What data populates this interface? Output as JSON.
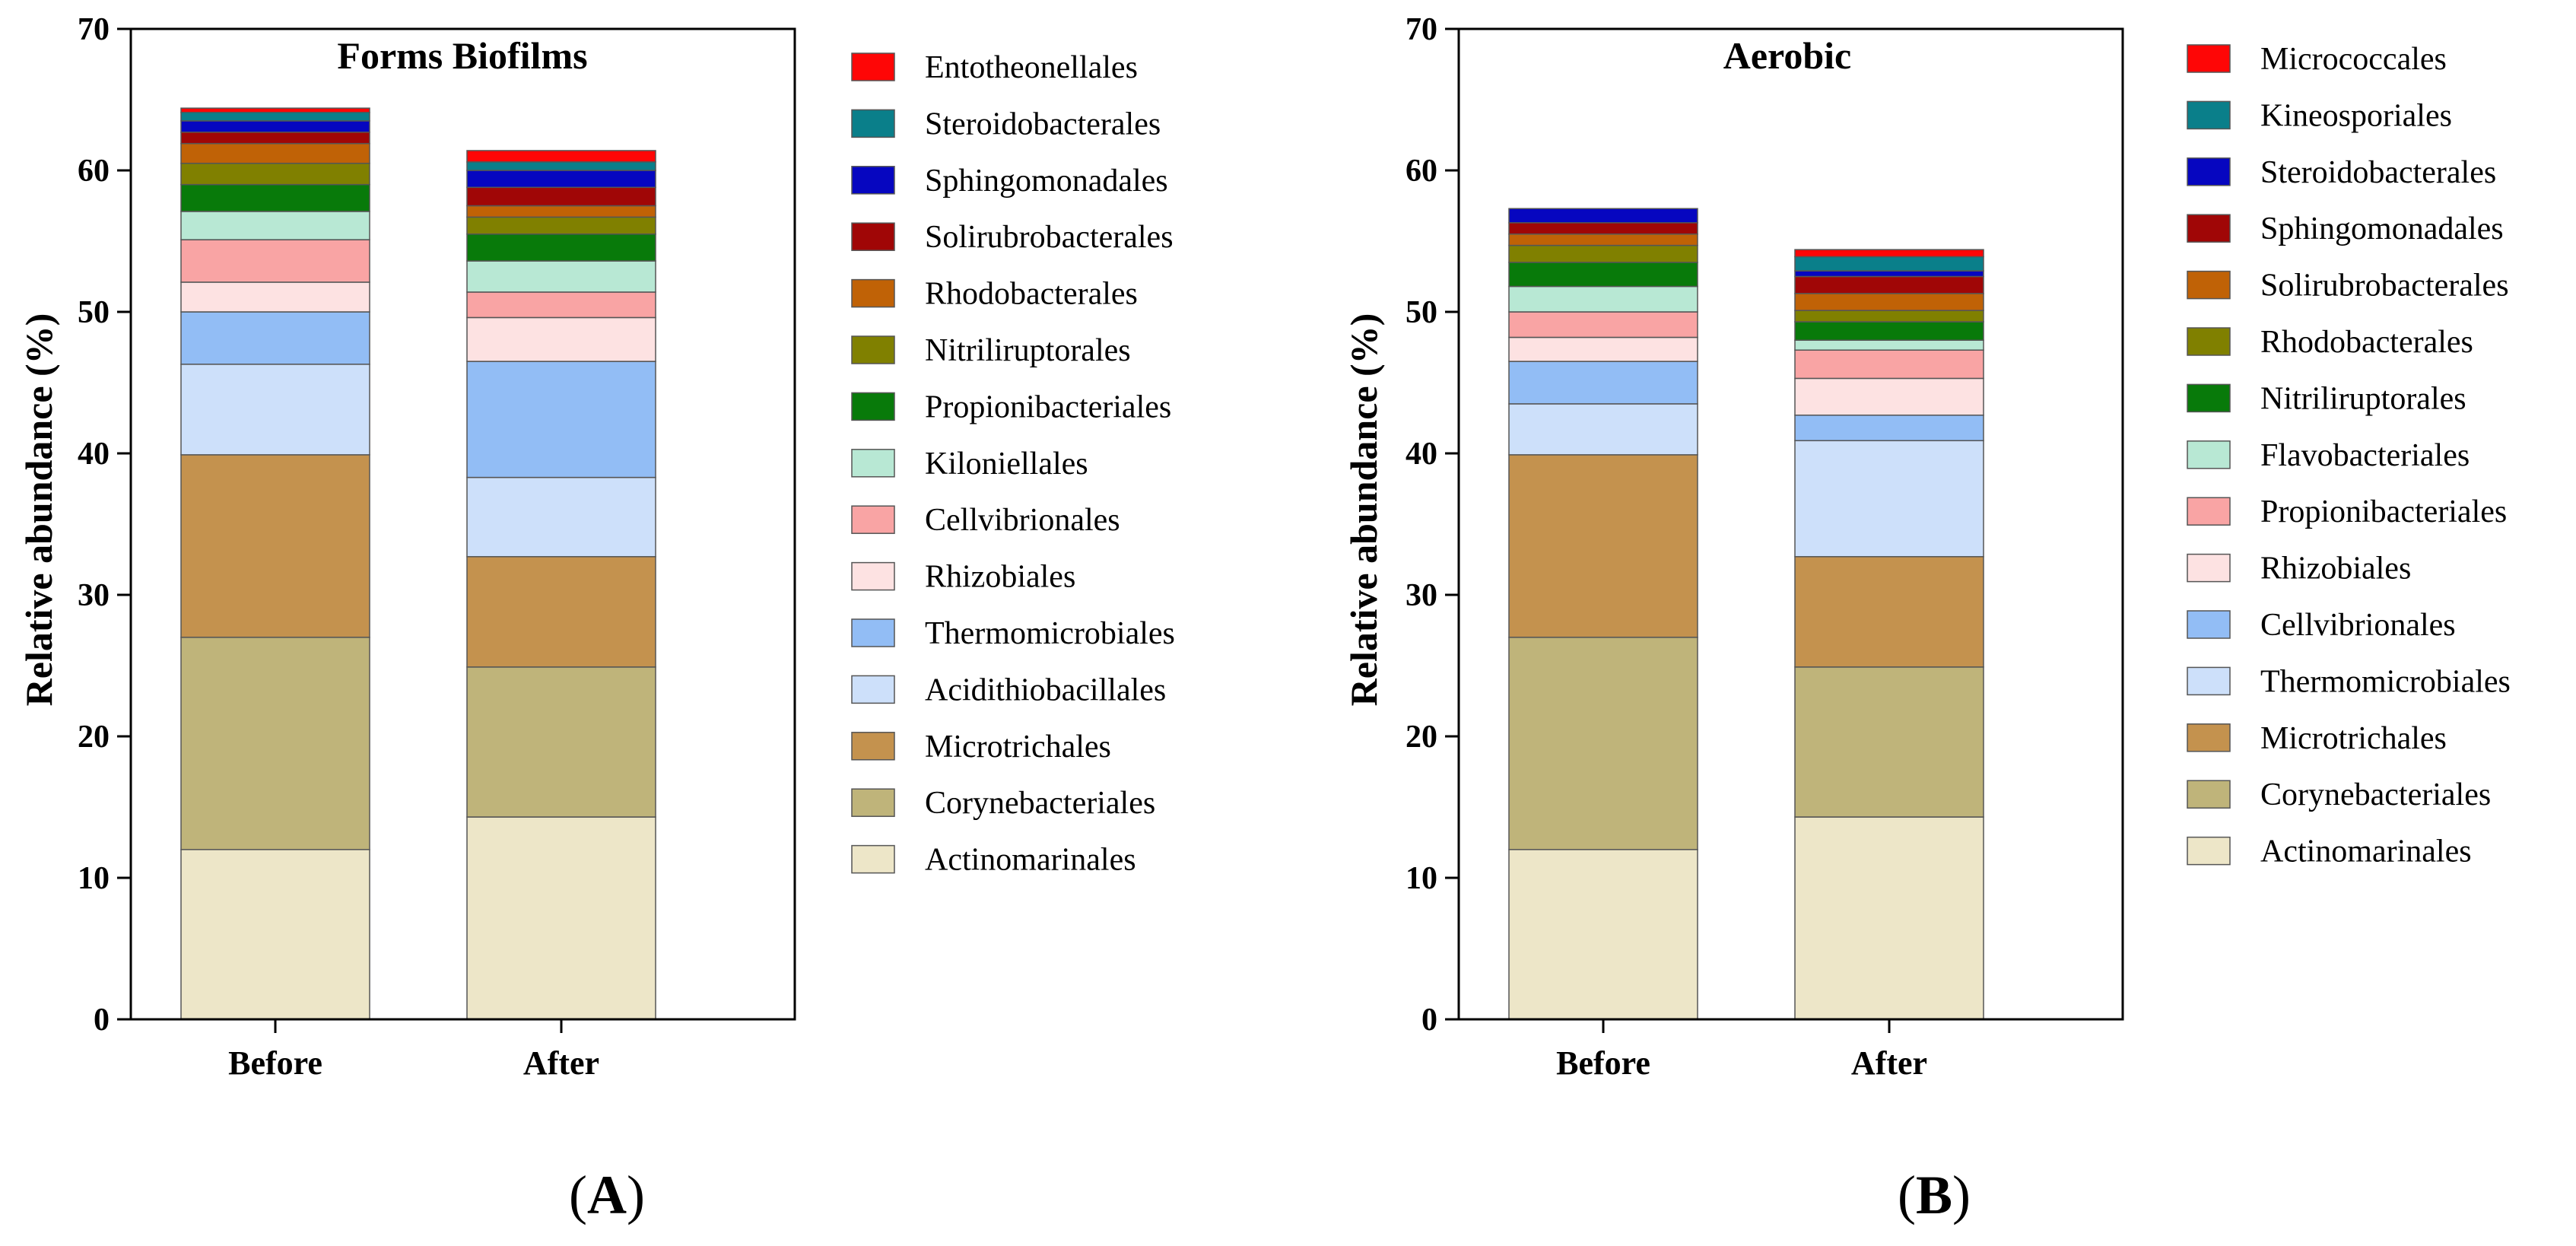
{
  "chart_data": [
    {
      "panel": "A",
      "panel_label": {
        "open": "(",
        "letter": "A",
        "close": ")"
      },
      "type": "bar",
      "stacked": true,
      "title": "Forms Biofilms",
      "xlabel": "",
      "ylabel": "Relative abundance (%)",
      "ylim": [
        0,
        70
      ],
      "yticks": [
        0,
        10,
        20,
        30,
        40,
        50,
        60,
        70
      ],
      "categories": [
        "Before",
        "After"
      ],
      "legend_position": "right",
      "series": [
        {
          "name": "Actinomarinales",
          "color": "#ede6c8",
          "values": [
            12.0,
            14.3
          ]
        },
        {
          "name": "Corynebacteriales",
          "color": "#bfb47a",
          "values": [
            15.0,
            10.6
          ]
        },
        {
          "name": "Microtrichales",
          "color": "#c4924e",
          "values": [
            12.9,
            7.8
          ]
        },
        {
          "name": "Acidithiobacillales",
          "color": "#cde0fa",
          "values": [
            6.4,
            5.6
          ]
        },
        {
          "name": "Thermomicrobiales",
          "color": "#92bdf5",
          "values": [
            3.7,
            8.2
          ]
        },
        {
          "name": "Rhizobiales",
          "color": "#fde2e2",
          "values": [
            2.1,
            3.1
          ]
        },
        {
          "name": "Cellvibrionales",
          "color": "#f9a4a4",
          "values": [
            3.0,
            1.8
          ]
        },
        {
          "name": "Kiloniellales",
          "color": "#b8e8d4",
          "values": [
            2.0,
            2.2
          ]
        },
        {
          "name": "Propionibacteriales",
          "color": "#087a0a",
          "values": [
            1.9,
            1.9
          ]
        },
        {
          "name": "Nitriliruptorales",
          "color": "#808000",
          "values": [
            1.5,
            1.2
          ]
        },
        {
          "name": "Rhodobacterales",
          "color": "#c06206",
          "values": [
            1.4,
            0.8
          ]
        },
        {
          "name": "Solirubrobacterales",
          "color": "#a00606",
          "values": [
            0.8,
            1.3
          ]
        },
        {
          "name": "Sphingomonadales",
          "color": "#0606c0",
          "values": [
            0.8,
            1.2
          ]
        },
        {
          "name": "Steroidobacterales",
          "color": "#0a7f8a",
          "values": [
            0.6,
            0.6
          ]
        },
        {
          "name": "Entotheonellales",
          "color": "#fe0606",
          "values": [
            0.3,
            0.8
          ]
        }
      ]
    },
    {
      "panel": "B",
      "panel_label": {
        "open": "(",
        "letter": "B",
        "close": ")"
      },
      "type": "bar",
      "stacked": true,
      "title": "Aerobic",
      "xlabel": "",
      "ylabel": "Relative abundance (%)",
      "ylim": [
        0,
        70
      ],
      "yticks": [
        0,
        10,
        20,
        30,
        40,
        50,
        60,
        70
      ],
      "categories": [
        "Before",
        "After"
      ],
      "legend_position": "right",
      "series": [
        {
          "name": "Actinomarinales",
          "color": "#ede6c8",
          "values": [
            12.0,
            14.3
          ]
        },
        {
          "name": "Corynebacteriales",
          "color": "#bfb47a",
          "values": [
            15.0,
            10.6
          ]
        },
        {
          "name": "Microtrichales",
          "color": "#c4924e",
          "values": [
            12.9,
            7.8
          ]
        },
        {
          "name": "Thermomicrobiales",
          "color": "#cde0fa",
          "values": [
            3.6,
            8.2
          ]
        },
        {
          "name": "Cellvibrionales",
          "color": "#92bdf5",
          "values": [
            3.0,
            1.8
          ]
        },
        {
          "name": "Rhizobiales",
          "color": "#fde2e2",
          "values": [
            1.7,
            2.6
          ]
        },
        {
          "name": "Propionibacteriales",
          "color": "#f9a4a4",
          "values": [
            1.8,
            2.0
          ]
        },
        {
          "name": "Flavobacteriales",
          "color": "#b8e8d4",
          "values": [
            1.8,
            0.7
          ]
        },
        {
          "name": "Nitriliruptorales",
          "color": "#087a0a",
          "values": [
            1.7,
            1.3
          ]
        },
        {
          "name": "Rhodobacterales",
          "color": "#808000",
          "values": [
            1.2,
            0.8
          ]
        },
        {
          "name": "Solirubrobacterales",
          "color": "#c06206",
          "values": [
            0.8,
            1.2
          ]
        },
        {
          "name": "Sphingomonadales",
          "color": "#a00606",
          "values": [
            0.8,
            1.2
          ]
        },
        {
          "name": "Steroidobacterales",
          "color": "#0606c0",
          "values": [
            1.0,
            0.4
          ]
        },
        {
          "name": "Kineosporiales",
          "color": "#0a7f8a",
          "values": [
            0.0,
            1.0
          ]
        },
        {
          "name": "Micrococcales",
          "color": "#fe0606",
          "values": [
            0.0,
            0.5
          ]
        }
      ]
    }
  ]
}
